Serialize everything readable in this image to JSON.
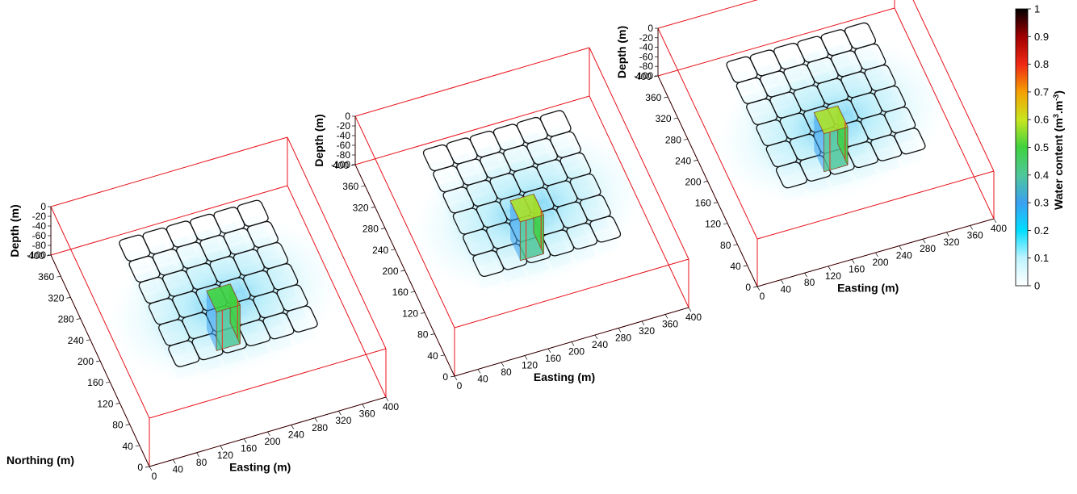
{
  "chart_data": {
    "type": "3d-volume",
    "description_note": "",
    "axes": {
      "easting_label": "Easting (m)",
      "northing_label": "Northing (m)",
      "depth_label": "Depth (m)",
      "easting_ticks": [
        "0",
        "40",
        "80",
        "120",
        "160",
        "200",
        "240",
        "280",
        "320",
        "360",
        "400"
      ],
      "northing_ticks": [
        "0",
        "40",
        "80",
        "120",
        "160",
        "200",
        "240",
        "280",
        "320",
        "360",
        "400"
      ],
      "depth_ticks": [
        "0",
        "-20",
        "-40",
        "-60",
        "-80",
        "-100"
      ],
      "easting_range": [
        0,
        400
      ],
      "northing_range": [
        0,
        400
      ],
      "depth_range": [
        -100,
        0
      ]
    },
    "colorbar": {
      "label": "Water content (m",
      "label_sup1": "3",
      "label_mid": ".m",
      "label_sup2": "-3",
      "label_end": ")",
      "ticks": [
        "0",
        "0.1",
        "0.2",
        "0.3",
        "0.4",
        "0.5",
        "0.6",
        "0.7",
        "0.8",
        "0.9",
        "1"
      ],
      "range": [
        0,
        1
      ],
      "colors": [
        "#ffffff",
        "#bff4ff",
        "#00ddff",
        "#3aa0f0",
        "#4fc79a",
        "#3fd23f",
        "#c8e61e",
        "#f5a000",
        "#f02814",
        "#a00000",
        "#000000"
      ]
    },
    "panels": [
      {
        "northing_label_shown": true,
        "grid_size": 6,
        "grid_span": [
          80,
          320
        ],
        "anomaly": {
          "easting": [
            180,
            220
          ],
          "northing": [
            160,
            200
          ],
          "depth": [
            -100,
            -20
          ],
          "max_water_content": 0.5
        }
      },
      {
        "northing_label_shown": false,
        "grid_size": 6,
        "grid_span": [
          80,
          320
        ],
        "anomaly": {
          "easting": [
            180,
            220
          ],
          "northing": [
            160,
            200
          ],
          "depth": [
            -100,
            -20
          ],
          "max_water_content": 0.6
        }
      },
      {
        "northing_label_shown": false,
        "grid_size": 6,
        "grid_span": [
          80,
          320
        ],
        "anomaly": {
          "easting": [
            180,
            220
          ],
          "northing": [
            160,
            200
          ],
          "depth": [
            -100,
            -20
          ],
          "max_water_content": 0.6
        }
      }
    ]
  }
}
